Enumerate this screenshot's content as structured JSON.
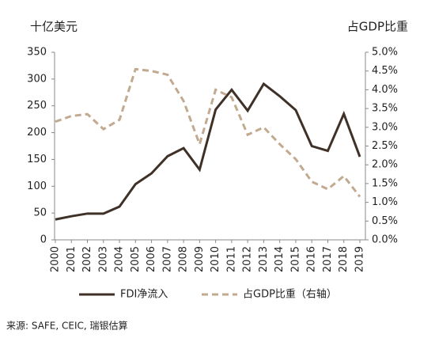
{
  "chart_data": {
    "type": "line",
    "y_label": "十亿美元",
    "y2_label": "占GDP比重",
    "categories": [
      "2000",
      "2001",
      "2002",
      "2003",
      "2004",
      "2005",
      "2006",
      "2007",
      "2008",
      "2009",
      "2010",
      "2011",
      "2012",
      "2013",
      "2014",
      "2015",
      "2016",
      "2017",
      "2018",
      "2019"
    ],
    "series": [
      {
        "name": "FDI净流入",
        "color": "#3f3128",
        "dash": false,
        "values": [
          38,
          44,
          49,
          49,
          62,
          104,
          124,
          156,
          171,
          131,
          243,
          280,
          241,
          291,
          268,
          242,
          175,
          166,
          235,
          155
        ]
      },
      {
        "name": "占GDP比重（右轴）",
        "color": "#c2aa90",
        "dash": true,
        "axis": "y2",
        "values": [
          3.15,
          3.3,
          3.35,
          2.95,
          3.2,
          4.55,
          4.5,
          4.4,
          3.7,
          2.55,
          4.0,
          3.8,
          2.8,
          3.0,
          2.55,
          2.15,
          1.55,
          1.35,
          1.7,
          1.15
        ]
      }
    ],
    "ylim": [
      0,
      350
    ],
    "yticks": [
      0,
      50,
      100,
      150,
      200,
      250,
      300,
      350
    ],
    "y2lim": [
      0,
      5
    ],
    "y2ticks": [
      {
        "value": 0,
        "label": "0.0%"
      },
      {
        "value": 0.5,
        "label": "0.5%"
      },
      {
        "value": 1,
        "label": "1.0%"
      },
      {
        "value": 1.5,
        "label": "1.5%"
      },
      {
        "value": 2,
        "label": "2.0%"
      },
      {
        "value": 2.5,
        "label": "2.5%"
      },
      {
        "value": 3,
        "label": "3.0%"
      },
      {
        "value": 3.5,
        "label": "3.5%"
      },
      {
        "value": 4,
        "label": "4.0%"
      },
      {
        "value": 4.5,
        "label": "4.5%"
      },
      {
        "value": 5,
        "label": "5.0%"
      }
    ],
    "source": "来源: SAFE, CEIC, 瑞银估算"
  }
}
